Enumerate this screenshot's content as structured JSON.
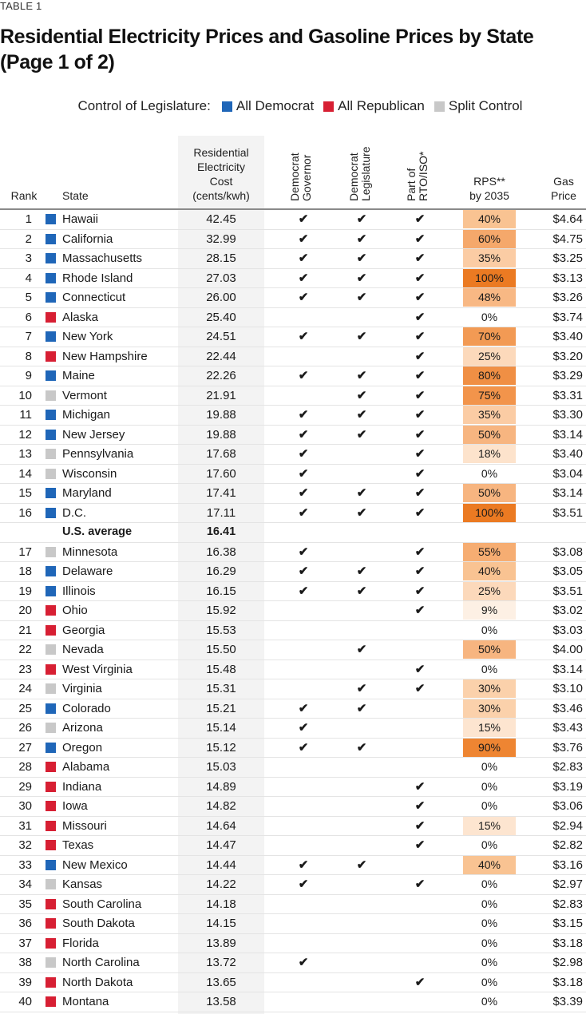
{
  "kicker": "TABLE 1",
  "title": "Residential Electricity Prices and Gasoline Prices by State (Page 1 of 2)",
  "legend": {
    "label": "Control of Legislature:",
    "items": [
      {
        "label": "All Democrat",
        "key": "D",
        "color": "#1f66b8"
      },
      {
        "label": "All Republican",
        "key": "R",
        "color": "#d71f33"
      },
      {
        "label": "Split Control",
        "key": "S",
        "color": "#c8c8c8"
      }
    ]
  },
  "headers": {
    "rank": "Rank",
    "state": "State",
    "elec": [
      "Residential",
      "Electricity",
      "Cost",
      "(cents/kwh)"
    ],
    "gov": [
      "Democrat",
      "Governor"
    ],
    "leg": [
      "Democrat",
      "Legislature"
    ],
    "rto": [
      "Part of",
      "RTO/ISO*"
    ],
    "rps": [
      "RPS**",
      "by 2035"
    ],
    "gas": [
      "Gas",
      "Price"
    ]
  },
  "check_glyph": "✔",
  "rps_colors": {
    "0": "#ffffff",
    "9": "#fdf0e4",
    "15": "#fde5d0",
    "18": "#fde3cc",
    "25": "#fcd9bb",
    "30": "#fbd1ab",
    "35": "#fbcca4",
    "40": "#f9c392",
    "48": "#f8b884",
    "50": "#f7b580",
    "55": "#f6ad72",
    "60": "#f5a86b",
    "70": "#f29a54",
    "75": "#f2944b",
    "80": "#f08f44",
    "90": "#ee8532",
    "100": "#eb7a22"
  },
  "rows": [
    {
      "rank": "1",
      "state": "Hawaii",
      "party": "D",
      "elec": "42.45",
      "gov": true,
      "leg": true,
      "rto": true,
      "rps": "40%",
      "rpsv": 40,
      "gas": "$4.64"
    },
    {
      "rank": "2",
      "state": "California",
      "party": "D",
      "elec": "32.99",
      "gov": true,
      "leg": true,
      "rto": true,
      "rps": "60%",
      "rpsv": 60,
      "gas": "$4.75"
    },
    {
      "rank": "3",
      "state": "Massachusetts",
      "party": "D",
      "elec": "28.15",
      "gov": true,
      "leg": true,
      "rto": true,
      "rps": "35%",
      "rpsv": 35,
      "gas": "$3.25"
    },
    {
      "rank": "4",
      "state": "Rhode Island",
      "party": "D",
      "elec": "27.03",
      "gov": true,
      "leg": true,
      "rto": true,
      "rps": "100%",
      "rpsv": 100,
      "gas": "$3.13"
    },
    {
      "rank": "5",
      "state": "Connecticut",
      "party": "D",
      "elec": "26.00",
      "gov": true,
      "leg": true,
      "rto": true,
      "rps": "48%",
      "rpsv": 48,
      "gas": "$3.26"
    },
    {
      "rank": "6",
      "state": "Alaska",
      "party": "R",
      "elec": "25.40",
      "gov": false,
      "leg": false,
      "rto": true,
      "rps": "0%",
      "rpsv": 0,
      "gas": "$3.74"
    },
    {
      "rank": "7",
      "state": "New York",
      "party": "D",
      "elec": "24.51",
      "gov": true,
      "leg": true,
      "rto": true,
      "rps": "70%",
      "rpsv": 70,
      "gas": "$3.40"
    },
    {
      "rank": "8",
      "state": "New Hampshire",
      "party": "R",
      "elec": "22.44",
      "gov": false,
      "leg": false,
      "rto": true,
      "rps": "25%",
      "rpsv": 25,
      "gas": "$3.20"
    },
    {
      "rank": "9",
      "state": "Maine",
      "party": "D",
      "elec": "22.26",
      "gov": true,
      "leg": true,
      "rto": true,
      "rps": "80%",
      "rpsv": 80,
      "gas": "$3.29"
    },
    {
      "rank": "10",
      "state": "Vermont",
      "party": "S",
      "elec": "21.91",
      "gov": false,
      "leg": true,
      "rto": true,
      "rps": "75%",
      "rpsv": 75,
      "gas": "$3.31"
    },
    {
      "rank": "11",
      "state": "Michigan",
      "party": "D",
      "elec": "19.88",
      "gov": true,
      "leg": true,
      "rto": true,
      "rps": "35%",
      "rpsv": 35,
      "gas": "$3.30"
    },
    {
      "rank": "12",
      "state": "New Jersey",
      "party": "D",
      "elec": "19.88",
      "gov": true,
      "leg": true,
      "rto": true,
      "rps": "50%",
      "rpsv": 50,
      "gas": "$3.14"
    },
    {
      "rank": "13",
      "state": "Pennsylvania",
      "party": "S",
      "elec": "17.68",
      "gov": true,
      "leg": false,
      "rto": true,
      "rps": "18%",
      "rpsv": 18,
      "gas": "$3.40"
    },
    {
      "rank": "14",
      "state": "Wisconsin",
      "party": "S",
      "elec": "17.60",
      "gov": true,
      "leg": false,
      "rto": true,
      "rps": "0%",
      "rpsv": 0,
      "gas": "$3.04"
    },
    {
      "rank": "15",
      "state": "Maryland",
      "party": "D",
      "elec": "17.41",
      "gov": true,
      "leg": true,
      "rto": true,
      "rps": "50%",
      "rpsv": 50,
      "gas": "$3.14"
    },
    {
      "rank": "16",
      "state": "D.C.",
      "party": "D",
      "elec": "17.11",
      "gov": true,
      "leg": true,
      "rto": true,
      "rps": "100%",
      "rpsv": 100,
      "gas": "$3.51"
    },
    {
      "rank": "",
      "state": "U.S. average",
      "party": "",
      "elec": "16.41",
      "gov": false,
      "leg": false,
      "rto": false,
      "rps": "",
      "rpsv": null,
      "gas": "",
      "avg": true
    },
    {
      "rank": "17",
      "state": "Minnesota",
      "party": "S",
      "elec": "16.38",
      "gov": true,
      "leg": false,
      "rto": true,
      "rps": "55%",
      "rpsv": 55,
      "gas": "$3.08"
    },
    {
      "rank": "18",
      "state": "Delaware",
      "party": "D",
      "elec": "16.29",
      "gov": true,
      "leg": true,
      "rto": true,
      "rps": "40%",
      "rpsv": 40,
      "gas": "$3.05"
    },
    {
      "rank": "19",
      "state": "Illinois",
      "party": "D",
      "elec": "16.15",
      "gov": true,
      "leg": true,
      "rto": true,
      "rps": "25%",
      "rpsv": 25,
      "gas": "$3.51"
    },
    {
      "rank": "20",
      "state": "Ohio",
      "party": "R",
      "elec": "15.92",
      "gov": false,
      "leg": false,
      "rto": true,
      "rps": "9%",
      "rpsv": 9,
      "gas": "$3.02"
    },
    {
      "rank": "21",
      "state": "Georgia",
      "party": "R",
      "elec": "15.53",
      "gov": false,
      "leg": false,
      "rto": false,
      "rps": "0%",
      "rpsv": 0,
      "gas": "$3.03"
    },
    {
      "rank": "22",
      "state": "Nevada",
      "party": "S",
      "elec": "15.50",
      "gov": false,
      "leg": true,
      "rto": false,
      "rps": "50%",
      "rpsv": 50,
      "gas": "$4.00"
    },
    {
      "rank": "23",
      "state": "West Virginia",
      "party": "R",
      "elec": "15.48",
      "gov": false,
      "leg": false,
      "rto": true,
      "rps": "0%",
      "rpsv": 0,
      "gas": "$3.14"
    },
    {
      "rank": "24",
      "state": "Virginia",
      "party": "S",
      "elec": "15.31",
      "gov": false,
      "leg": true,
      "rto": true,
      "rps": "30%",
      "rpsv": 30,
      "gas": "$3.10"
    },
    {
      "rank": "25",
      "state": "Colorado",
      "party": "D",
      "elec": "15.21",
      "gov": true,
      "leg": true,
      "rto": false,
      "rps": "30%",
      "rpsv": 30,
      "gas": "$3.46"
    },
    {
      "rank": "26",
      "state": "Arizona",
      "party": "S",
      "elec": "15.14",
      "gov": true,
      "leg": false,
      "rto": false,
      "rps": "15%",
      "rpsv": 15,
      "gas": "$3.43"
    },
    {
      "rank": "27",
      "state": "Oregon",
      "party": "D",
      "elec": "15.12",
      "gov": true,
      "leg": true,
      "rto": false,
      "rps": "90%",
      "rpsv": 90,
      "gas": "$3.76"
    },
    {
      "rank": "28",
      "state": "Alabama",
      "party": "R",
      "elec": "15.03",
      "gov": false,
      "leg": false,
      "rto": false,
      "rps": "0%",
      "rpsv": 0,
      "gas": "$2.83"
    },
    {
      "rank": "29",
      "state": "Indiana",
      "party": "R",
      "elec": "14.89",
      "gov": false,
      "leg": false,
      "rto": true,
      "rps": "0%",
      "rpsv": 0,
      "gas": "$3.19"
    },
    {
      "rank": "30",
      "state": "Iowa",
      "party": "R",
      "elec": "14.82",
      "gov": false,
      "leg": false,
      "rto": true,
      "rps": "0%",
      "rpsv": 0,
      "gas": "$3.06"
    },
    {
      "rank": "31",
      "state": "Missouri",
      "party": "R",
      "elec": "14.64",
      "gov": false,
      "leg": false,
      "rto": true,
      "rps": "15%",
      "rpsv": 15,
      "gas": "$2.94"
    },
    {
      "rank": "32",
      "state": "Texas",
      "party": "R",
      "elec": "14.47",
      "gov": false,
      "leg": false,
      "rto": true,
      "rps": "0%",
      "rpsv": 0,
      "gas": "$2.82"
    },
    {
      "rank": "33",
      "state": "New Mexico",
      "party": "D",
      "elec": "14.44",
      "gov": true,
      "leg": true,
      "rto": false,
      "rps": "40%",
      "rpsv": 40,
      "gas": "$3.16"
    },
    {
      "rank": "34",
      "state": "Kansas",
      "party": "S",
      "elec": "14.22",
      "gov": true,
      "leg": false,
      "rto": true,
      "rps": "0%",
      "rpsv": 0,
      "gas": "$2.97"
    },
    {
      "rank": "35",
      "state": "South Carolina",
      "party": "R",
      "elec": "14.18",
      "gov": false,
      "leg": false,
      "rto": false,
      "rps": "0%",
      "rpsv": 0,
      "gas": "$2.83"
    },
    {
      "rank": "36",
      "state": "South Dakota",
      "party": "R",
      "elec": "14.15",
      "gov": false,
      "leg": false,
      "rto": false,
      "rps": "0%",
      "rpsv": 0,
      "gas": "$3.15"
    },
    {
      "rank": "37",
      "state": "Florida",
      "party": "R",
      "elec": "13.89",
      "gov": false,
      "leg": false,
      "rto": false,
      "rps": "0%",
      "rpsv": 0,
      "gas": "$3.18"
    },
    {
      "rank": "38",
      "state": "North Carolina",
      "party": "S",
      "elec": "13.72",
      "gov": true,
      "leg": false,
      "rto": false,
      "rps": "0%",
      "rpsv": 0,
      "gas": "$2.98"
    },
    {
      "rank": "39",
      "state": "North Dakota",
      "party": "R",
      "elec": "13.65",
      "gov": false,
      "leg": false,
      "rto": true,
      "rps": "0%",
      "rpsv": 0,
      "gas": "$3.18"
    },
    {
      "rank": "40",
      "state": "Montana",
      "party": "R",
      "elec": "13.58",
      "gov": false,
      "leg": false,
      "rto": false,
      "rps": "0%",
      "rpsv": 0,
      "gas": "$3.39"
    }
  ]
}
